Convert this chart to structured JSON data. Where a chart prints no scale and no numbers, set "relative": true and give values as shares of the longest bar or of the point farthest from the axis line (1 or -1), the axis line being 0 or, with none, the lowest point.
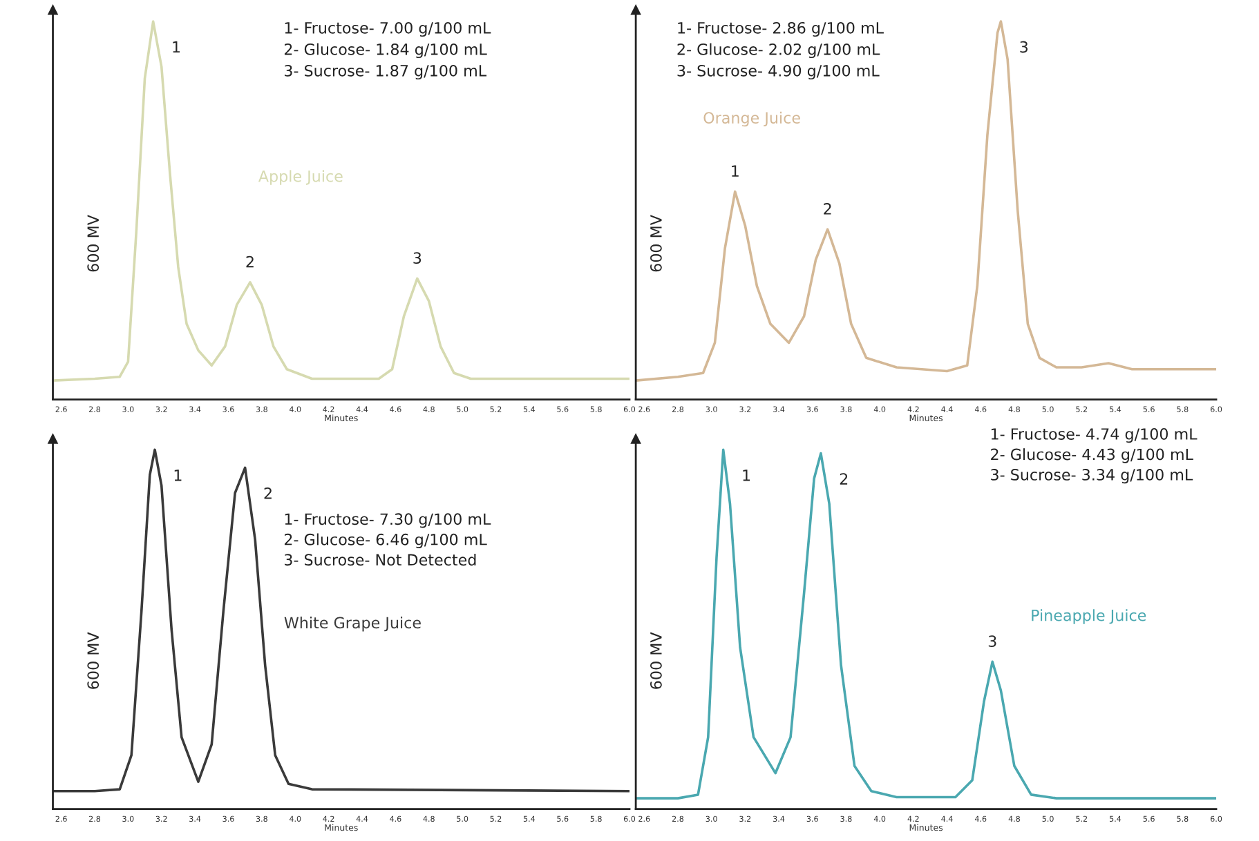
{
  "chart_data": [
    {
      "type": "line",
      "relative": true,
      "title": "Apple Juice",
      "xlabel": "Minutes",
      "ylabel": "600 MV",
      "xlim": [
        2.55,
        6.0
      ],
      "xticks": [
        2.6,
        2.8,
        {
          "value": 3,
          "label": "3.0"
        },
        3.2,
        3.4,
        3.6,
        3.8,
        {
          "value": 4,
          "label": "4.0"
        },
        4.2,
        4.4,
        4.6,
        4.8,
        {
          "value": 5,
          "label": "5.0"
        },
        5.2,
        5.4,
        5.6,
        5.8,
        {
          "value": 6,
          "label": "6.0"
        }
      ],
      "x": [
        2.55,
        2.8,
        2.95,
        3.0,
        3.05,
        3.1,
        3.15,
        3.2,
        3.25,
        3.3,
        3.35,
        3.42,
        3.5,
        3.58,
        3.65,
        3.73,
        3.8,
        3.87,
        3.95,
        4.1,
        4.5,
        4.58,
        4.65,
        4.73,
        4.8,
        4.87,
        4.95,
        5.05,
        6.0
      ],
      "series": [
        {
          "color": "#d6dab0",
          "values": [
            0.05,
            0.055,
            0.06,
            0.1,
            0.45,
            0.85,
            1.0,
            0.88,
            0.6,
            0.35,
            0.2,
            0.13,
            0.09,
            0.14,
            0.25,
            0.31,
            0.25,
            0.14,
            0.08,
            0.055,
            0.055,
            0.08,
            0.22,
            0.32,
            0.26,
            0.14,
            0.07,
            0.055,
            0.055
          ]
        }
      ],
      "annotations": [
        "1- Fructose- 7.00 g/100 mL",
        "2- Glucose- 1.84 g/100 mL",
        "3- Sucrose- 1.87 g/100 mL",
        {
          "text": "1",
          "x": 3.15,
          "y": 1.0
        },
        {
          "text": "2",
          "x": 3.73,
          "y": 0.31
        },
        {
          "text": "3",
          "x": 4.73,
          "y": 0.32
        }
      ]
    },
    {
      "type": "line",
      "relative": true,
      "title": "Orange Juice",
      "xlabel": "Minutes",
      "ylabel": "600 MV",
      "xlim": [
        2.55,
        6.0
      ],
      "xticks": [
        2.6,
        2.8,
        {
          "value": 3,
          "label": "3.0"
        },
        3.2,
        3.4,
        3.6,
        3.8,
        {
          "value": 4,
          "label": "4.0"
        },
        4.2,
        4.4,
        4.6,
        4.8,
        {
          "value": 5,
          "label": "5.0"
        },
        5.2,
        5.4,
        5.6,
        5.8,
        {
          "value": 6,
          "label": "6.0"
        }
      ],
      "x": [
        2.55,
        2.8,
        2.95,
        3.02,
        3.08,
        3.14,
        3.2,
        3.27,
        3.35,
        3.46,
        3.55,
        3.62,
        3.69,
        3.76,
        3.83,
        3.92,
        4.1,
        4.4,
        4.52,
        4.58,
        4.64,
        4.7,
        4.72,
        4.76,
        4.82,
        4.88,
        4.95,
        5.05,
        5.2,
        5.36,
        5.5,
        6.0
      ],
      "series": [
        {
          "color": "#d4b896",
          "values": [
            0.05,
            0.06,
            0.07,
            0.15,
            0.4,
            0.55,
            0.46,
            0.3,
            0.2,
            0.15,
            0.22,
            0.37,
            0.45,
            0.36,
            0.2,
            0.11,
            0.085,
            0.075,
            0.09,
            0.3,
            0.7,
            0.97,
            1.0,
            0.9,
            0.5,
            0.2,
            0.11,
            0.085,
            0.085,
            0.096,
            0.08,
            0.08
          ]
        }
      ],
      "annotations": [
        "1- Fructose- 2.86 g/100 mL",
        "2- Glucose- 2.02 g/100 mL",
        "3- Sucrose- 4.90 g/100 mL",
        {
          "text": "1",
          "x": 3.14,
          "y": 0.55
        },
        {
          "text": "2",
          "x": 3.69,
          "y": 0.45
        },
        {
          "text": "3",
          "x": 4.72,
          "y": 1.0
        }
      ]
    },
    {
      "type": "line",
      "relative": true,
      "title": "White Grape Juice",
      "xlabel": "Minutes",
      "ylabel": "600 MV",
      "xlim": [
        2.55,
        6.0
      ],
      "xticks": [
        2.6,
        2.8,
        {
          "value": 3,
          "label": "3.0"
        },
        3.2,
        3.4,
        3.6,
        3.8,
        {
          "value": 4,
          "label": "4.0"
        },
        4.2,
        4.4,
        4.6,
        4.8,
        {
          "value": 5,
          "label": "5.0"
        },
        5.2,
        5.4,
        5.6,
        5.8,
        {
          "value": 6,
          "label": "6.0"
        }
      ],
      "x": [
        2.55,
        2.8,
        2.95,
        3.02,
        3.08,
        3.13,
        3.16,
        3.2,
        3.26,
        3.32,
        3.42,
        3.5,
        3.57,
        3.64,
        3.7,
        3.76,
        3.82,
        3.88,
        3.96,
        4.1,
        6.0
      ],
      "series": [
        {
          "color": "#3a3a3a",
          "values": [
            0.05,
            0.05,
            0.055,
            0.15,
            0.55,
            0.93,
            1.0,
            0.9,
            0.5,
            0.2,
            0.076,
            0.18,
            0.55,
            0.88,
            0.95,
            0.75,
            0.4,
            0.15,
            0.07,
            0.055,
            0.05
          ]
        }
      ],
      "annotations": [
        "1- Fructose- 7.30 g/100 mL",
        "2- Glucose- 6.46 g/100 mL",
        "3- Sucrose- Not Detected",
        {
          "text": "1",
          "x": 3.16,
          "y": 1.0
        },
        {
          "text": "2",
          "x": 3.7,
          "y": 0.95
        }
      ]
    },
    {
      "type": "line",
      "relative": true,
      "title": "Pineapple Juice",
      "xlabel": "Minutes",
      "ylabel": "600 MV",
      "xlim": [
        2.55,
        6.0
      ],
      "xticks": [
        2.6,
        2.8,
        {
          "value": 3,
          "label": "3.0"
        },
        3.2,
        3.4,
        3.6,
        3.8,
        {
          "value": 4,
          "label": "4.0"
        },
        4.2,
        4.4,
        4.6,
        4.8,
        {
          "value": 5,
          "label": "5.0"
        },
        5.2,
        5.4,
        5.6,
        5.8,
        {
          "value": 6,
          "label": "6.0"
        }
      ],
      "x": [
        2.55,
        2.8,
        2.92,
        2.98,
        3.03,
        3.07,
        3.11,
        3.17,
        3.25,
        3.38,
        3.47,
        3.55,
        3.61,
        3.65,
        3.7,
        3.77,
        3.85,
        3.95,
        4.1,
        4.45,
        4.55,
        4.62,
        4.67,
        4.72,
        4.8,
        4.9,
        5.05,
        6.0
      ],
      "series": [
        {
          "color": "#4aa8b0",
          "values": [
            0.03,
            0.03,
            0.04,
            0.2,
            0.7,
            1.0,
            0.85,
            0.45,
            0.2,
            0.1,
            0.2,
            0.6,
            0.92,
            0.99,
            0.85,
            0.4,
            0.12,
            0.05,
            0.033,
            0.033,
            0.08,
            0.3,
            0.41,
            0.33,
            0.12,
            0.04,
            0.03,
            0.03
          ]
        }
      ],
      "annotations": [
        "1- Fructose- 4.74 g/100 mL",
        "2- Glucose- 4.43 g/100 mL",
        "3- Sucrose- 3.34 g/100 mL",
        {
          "text": "1",
          "x": 3.07,
          "y": 1.0
        },
        {
          "text": "2",
          "x": 3.65,
          "y": 0.99
        },
        {
          "text": "3",
          "x": 4.67,
          "y": 0.41
        }
      ]
    }
  ]
}
